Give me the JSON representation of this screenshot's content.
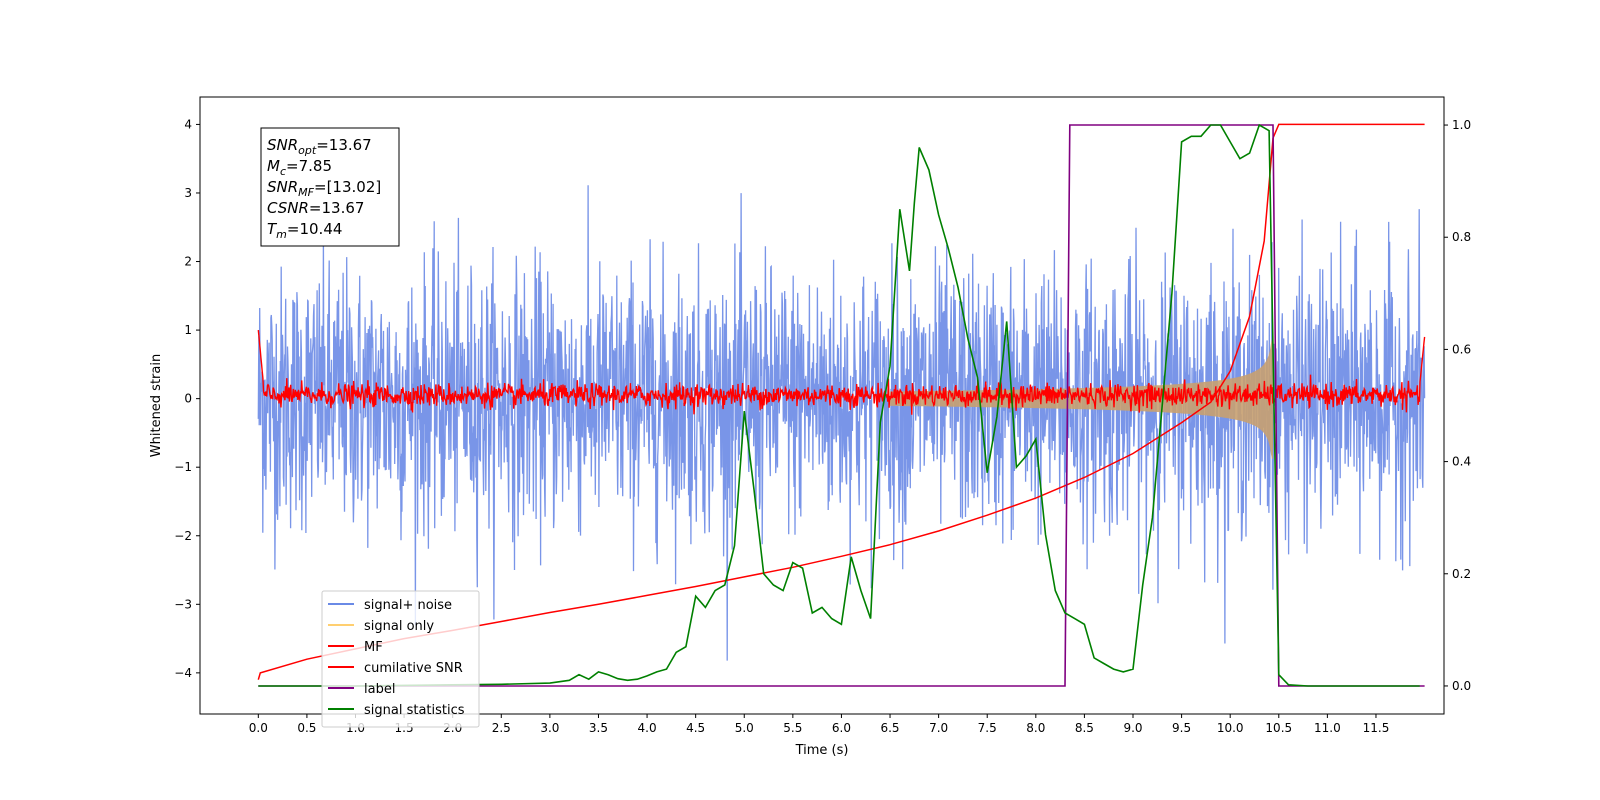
{
  "chart_data": {
    "type": "line",
    "xlabel": "Time (s)",
    "ylabel": "Whitened strain",
    "xlim": [
      -0.6,
      12.2
    ],
    "ylim": [
      -4.6,
      4.4
    ],
    "y2lim": [
      -0.05,
      1.05
    ],
    "x_ticks": [
      "0.0",
      "0.5",
      "1.0",
      "1.5",
      "2.0",
      "2.5",
      "3.0",
      "3.5",
      "4.0",
      "4.5",
      "5.0",
      "5.5",
      "6.0",
      "6.5",
      "7.0",
      "7.5",
      "8.0",
      "8.5",
      "9.0",
      "9.5",
      "10.0",
      "10.5",
      "11.0",
      "11.5"
    ],
    "y_ticks": [
      "−4",
      "−3",
      "−2",
      "−1",
      "0",
      "1",
      "2",
      "3",
      "4"
    ],
    "y2_ticks": [
      "0.0",
      "0.2",
      "0.4",
      "0.6",
      "0.8",
      "1.0"
    ],
    "annotation": {
      "lines": [
        {
          "sym": "SNR",
          "sub": "opt",
          "val": "=13.67"
        },
        {
          "sym": "M",
          "sub": "c",
          "val": "=7.85"
        },
        {
          "sym": "SNR",
          "sub": "MF",
          "val": "=[13.02]"
        },
        {
          "sym": "CSNR",
          "sub": "",
          "val": "=13.67"
        },
        {
          "sym": "T",
          "sub": "m",
          "val": "=10.44"
        }
      ]
    },
    "legend_position": "lower-left",
    "legend": [
      {
        "label": "signal+ noise",
        "color": "#6a8ae6"
      },
      {
        "label": "signal only",
        "color": "#ffcf70"
      },
      {
        "label": "MF",
        "color": "#ff0000"
      },
      {
        "label": "cumilative SNR",
        "color": "#ff0000"
      },
      {
        "label": "label",
        "color": "#800080"
      },
      {
        "label": "signal statistics",
        "color": "#008000"
      }
    ],
    "series": {
      "noise": {
        "x_range": [
          0,
          12.0
        ],
        "amplitude_std": 0.95,
        "color": "#6a8ae6"
      },
      "signal_only": {
        "x_range": [
          0,
          10.44
        ],
        "amplitude_peak": 1.0,
        "color": "#c8a070"
      },
      "mf": {
        "x_range": [
          0,
          12.0
        ],
        "level": 0.05,
        "amplitude": 0.12,
        "color": "#ff0000"
      },
      "cumulative_snr": {
        "x": [
          0.0,
          0.02,
          0.5,
          1.0,
          1.5,
          2.0,
          2.5,
          3.0,
          3.5,
          4.0,
          4.5,
          5.0,
          5.5,
          6.0,
          6.5,
          7.0,
          7.5,
          8.0,
          8.5,
          9.0,
          9.5,
          9.8,
          10.0,
          10.2,
          10.35,
          10.44,
          10.5,
          12.0
        ],
        "y": [
          -4.1,
          -4.0,
          -3.8,
          -3.65,
          -3.5,
          -3.38,
          -3.25,
          -3.12,
          -3.0,
          -2.87,
          -2.74,
          -2.6,
          -2.46,
          -2.3,
          -2.13,
          -1.93,
          -1.7,
          -1.45,
          -1.15,
          -0.8,
          -0.35,
          -0.05,
          0.4,
          1.2,
          2.3,
          3.8,
          4.0,
          4.0
        ],
        "color": "#ff0000"
      },
      "label": {
        "x": [
          0.0,
          8.3,
          8.35,
          10.44,
          10.5,
          12.0
        ],
        "y": [
          0.0,
          0.0,
          1.0,
          1.0,
          0.0,
          0.0
        ],
        "color": "#800080"
      },
      "signal_statistics": {
        "x": [
          0.0,
          1.0,
          2.0,
          2.5,
          3.0,
          3.2,
          3.3,
          3.4,
          3.5,
          3.6,
          3.7,
          3.8,
          3.9,
          4.0,
          4.1,
          4.2,
          4.3,
          4.4,
          4.5,
          4.6,
          4.7,
          4.8,
          4.9,
          5.0,
          5.1,
          5.2,
          5.3,
          5.4,
          5.5,
          5.6,
          5.7,
          5.8,
          5.9,
          6.0,
          6.1,
          6.2,
          6.3,
          6.4,
          6.5,
          6.6,
          6.7,
          6.75,
          6.8,
          6.9,
          7.0,
          7.1,
          7.2,
          7.3,
          7.4,
          7.5,
          7.6,
          7.7,
          7.8,
          7.9,
          8.0,
          8.1,
          8.2,
          8.3,
          8.4,
          8.5,
          8.6,
          8.7,
          8.8,
          8.9,
          9.0,
          9.1,
          9.2,
          9.3,
          9.4,
          9.5,
          9.6,
          9.7,
          9.8,
          9.9,
          10.0,
          10.1,
          10.2,
          10.3,
          10.4,
          10.5,
          10.6,
          10.8,
          11.0,
          11.5,
          11.95
        ],
        "y": [
          0.0,
          0.0,
          0.002,
          0.003,
          0.005,
          0.01,
          0.02,
          0.012,
          0.025,
          0.02,
          0.013,
          0.01,
          0.012,
          0.018,
          0.025,
          0.03,
          0.06,
          0.07,
          0.16,
          0.14,
          0.17,
          0.18,
          0.25,
          0.49,
          0.35,
          0.2,
          0.18,
          0.17,
          0.22,
          0.21,
          0.13,
          0.14,
          0.12,
          0.11,
          0.23,
          0.17,
          0.12,
          0.47,
          0.57,
          0.85,
          0.74,
          0.86,
          0.96,
          0.92,
          0.84,
          0.78,
          0.71,
          0.62,
          0.55,
          0.38,
          0.48,
          0.65,
          0.39,
          0.41,
          0.44,
          0.27,
          0.17,
          0.13,
          0.12,
          0.11,
          0.05,
          0.04,
          0.03,
          0.025,
          0.03,
          0.18,
          0.3,
          0.5,
          0.7,
          0.97,
          0.98,
          0.98,
          1.0,
          1.0,
          0.97,
          0.94,
          0.95,
          1.0,
          0.99,
          0.02,
          0.002,
          0.0,
          0.0,
          0.0,
          0.0
        ],
        "color": "#008000"
      }
    }
  }
}
